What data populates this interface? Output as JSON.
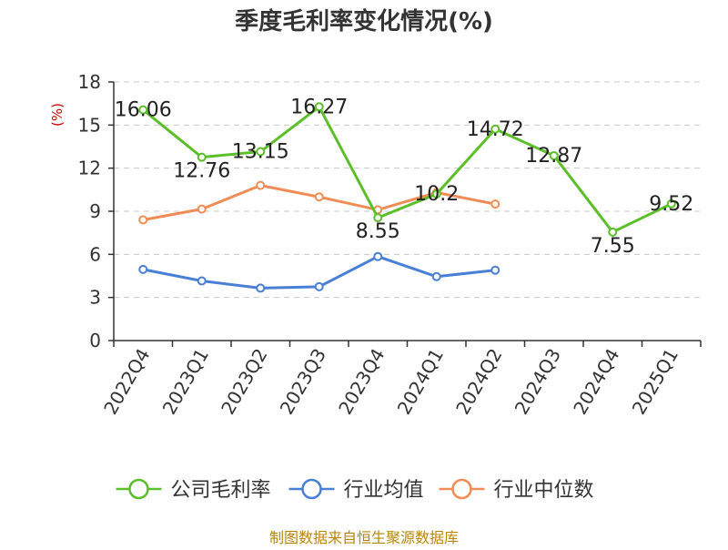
{
  "chart_data": {
    "type": "line",
    "title": "季度毛利率变化情况(%)",
    "ylabel": "(%)",
    "xlabel": "",
    "ylim": [
      0,
      18
    ],
    "yticks": [
      0,
      3,
      6,
      9,
      12,
      15,
      18
    ],
    "grid": true,
    "legend_position": "bottom",
    "categories": [
      "2022Q4",
      "2023Q1",
      "2023Q2",
      "2023Q3",
      "2023Q4",
      "2024Q1",
      "2024Q2",
      "2024Q3",
      "2024Q4",
      "2025Q1"
    ],
    "series": [
      {
        "name": "公司毛利率",
        "color": "#5cbf2a",
        "values": [
          16.06,
          12.76,
          13.15,
          16.27,
          8.55,
          10.2,
          14.72,
          12.87,
          7.55,
          9.52
        ],
        "labels": [
          "16.06",
          "12.76",
          "13.15",
          "16.27",
          "8.55",
          "10.2",
          "14.72",
          "12.87",
          "7.55",
          "9.52"
        ]
      },
      {
        "name": "行业均值",
        "color": "#4a7fd6",
        "values": [
          4.95,
          4.15,
          3.65,
          3.75,
          5.85,
          4.45,
          4.9,
          null,
          null,
          null
        ]
      },
      {
        "name": "行业中位数",
        "color": "#f08c55",
        "values": [
          8.4,
          9.15,
          10.8,
          10.0,
          9.1,
          10.3,
          9.5,
          null,
          null,
          null
        ]
      }
    ]
  },
  "footer": {
    "source": "制图数据来自恒生聚源数据库"
  }
}
